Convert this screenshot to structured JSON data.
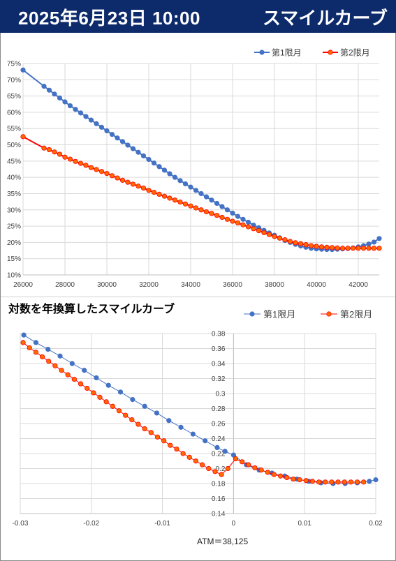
{
  "header": {
    "title": "2025年6月23日 10:00",
    "subtitle": "スマイルカーブ"
  },
  "colors": {
    "header_bg": "#0d2a6b",
    "series1": "#4472c4",
    "series2": "#ff0000",
    "series2_fill": "#ff6a00",
    "grid": "#d9d9d9"
  },
  "chart_data": [
    {
      "type": "line",
      "title": "",
      "xlabel": "",
      "ylabel": "",
      "xlim": [
        26000,
        43000
      ],
      "ylim": [
        10,
        75
      ],
      "x_ticks": [
        26000,
        28000,
        30000,
        32000,
        34000,
        36000,
        38000,
        40000,
        42000
      ],
      "y_ticks": [
        10,
        15,
        20,
        25,
        30,
        35,
        40,
        45,
        50,
        55,
        60,
        65,
        70,
        75
      ],
      "y_tick_suffix": "%",
      "grid": true,
      "legend": "top-right",
      "series": [
        {
          "name": "第1限月",
          "x": [
            26000,
            27000,
            27250,
            27500,
            27750,
            28000,
            28250,
            28500,
            28750,
            29000,
            29250,
            29500,
            29750,
            30000,
            30250,
            30500,
            30750,
            31000,
            31250,
            31500,
            31750,
            32000,
            32250,
            32500,
            32750,
            33000,
            33250,
            33500,
            33750,
            34000,
            34250,
            34500,
            34750,
            35000,
            35250,
            35500,
            35750,
            36000,
            36250,
            36500,
            36750,
            37000,
            37250,
            37500,
            37750,
            38000,
            38250,
            38500,
            38750,
            39000,
            39250,
            39500,
            39750,
            40000,
            40250,
            40500,
            40750,
            41000,
            41250,
            41500,
            41750,
            42000,
            42250,
            42500,
            42750,
            43000
          ],
          "y": [
            73,
            68,
            66.8,
            65.6,
            64.4,
            63.2,
            62,
            60.9,
            59.8,
            58.7,
            57.6,
            56.5,
            55.4,
            54.3,
            53.2,
            52.1,
            51,
            49.9,
            48.8,
            47.7,
            46.6,
            45.5,
            44.4,
            43.3,
            42.2,
            41.1,
            40,
            39,
            38,
            37,
            36,
            35,
            34,
            33,
            32,
            31,
            30,
            29,
            28,
            27.1,
            26.2,
            25.3,
            24.5,
            23.7,
            22.9,
            22.2,
            21.4,
            20.6,
            20,
            19.4,
            18.9,
            18.5,
            18.2,
            18,
            17.9,
            17.8,
            17.8,
            17.9,
            18,
            18.1,
            18.3,
            18.6,
            19,
            19.5,
            20.1,
            21.2
          ]
        },
        {
          "name": "第2限月",
          "x": [
            26000,
            27000,
            27250,
            27500,
            27750,
            28000,
            28250,
            28500,
            28750,
            29000,
            29250,
            29500,
            29750,
            30000,
            30250,
            30500,
            30750,
            31000,
            31250,
            31500,
            31750,
            32000,
            32250,
            32500,
            32750,
            33000,
            33250,
            33500,
            33750,
            34000,
            34250,
            34500,
            34750,
            35000,
            35250,
            35500,
            35750,
            36000,
            36250,
            36500,
            36750,
            37000,
            37250,
            37500,
            37750,
            38000,
            38250,
            38500,
            38750,
            39000,
            39250,
            39500,
            39750,
            40000,
            40250,
            40500,
            40750,
            41000,
            41250,
            41500,
            41750,
            42000,
            42250,
            42500,
            42750,
            43000
          ],
          "y": [
            52.5,
            49,
            48.5,
            47.8,
            47.1,
            46.2,
            45.6,
            44.9,
            44.3,
            43.7,
            43,
            42.4,
            41.8,
            41.2,
            40.5,
            39.8,
            39.1,
            38.5,
            37.9,
            37.3,
            36.7,
            36,
            35.4,
            34.8,
            34.2,
            33.6,
            33,
            32.4,
            31.8,
            31.2,
            30.6,
            30,
            29.4,
            28.9,
            28.3,
            27.7,
            27.1,
            26.5,
            26,
            25.4,
            24.8,
            24.2,
            23.6,
            23,
            22.4,
            21.8,
            21.3,
            20.8,
            20.3,
            19.9,
            19.6,
            19.3,
            19,
            18.8,
            18.6,
            18.5,
            18.4,
            18.3,
            18.2,
            18.2,
            18.2,
            18.2,
            18.2,
            18.2,
            18.2,
            18.2
          ]
        }
      ]
    },
    {
      "type": "line",
      "title": "対数を年換算したスマイルカーブ",
      "xlabel": "",
      "ylabel": "",
      "xlim": [
        -0.03,
        0.02
      ],
      "ylim": [
        0.14,
        0.38
      ],
      "x_ticks": [
        -0.03,
        -0.02,
        -0.01,
        0,
        0.01,
        0.02
      ],
      "x_tick_labels": [
        "-0.03",
        "-0.02",
        "-0.01",
        "0",
        "0.01",
        "0.02"
      ],
      "y_ticks": [
        0.14,
        0.16,
        0.18,
        0.2,
        0.22,
        0.24,
        0.26,
        0.28,
        0.3,
        0.32,
        0.34,
        0.36,
        0.38
      ],
      "y_tick_labels": [
        "0.14",
        "0.16",
        "0.18",
        "0.2",
        "0.22",
        "0.24",
        "0.26",
        "0.28",
        "0.3",
        "0.32",
        "0.34",
        "0.36",
        "0.38"
      ],
      "grid": true,
      "legend": "top-right",
      "annotation": "ATM＝38,125",
      "series": [
        {
          "name": "第1限月",
          "x": [
            -0.0295,
            -0.0278,
            -0.0261,
            -0.0244,
            -0.0227,
            -0.021,
            -0.0193,
            -0.0176,
            -0.0159,
            -0.0142,
            -0.0125,
            -0.0108,
            -0.0091,
            -0.0074,
            -0.0057,
            -0.004,
            -0.0023,
            -0.0012,
            0,
            0.0018,
            0.0036,
            0.0054,
            0.0072,
            0.0089,
            0.0106,
            0.0123,
            0.014,
            0.0157,
            0.0174,
            0.0191,
            0.02
          ],
          "y": [
            0.378,
            0.368,
            0.359,
            0.35,
            0.34,
            0.331,
            0.321,
            0.311,
            0.302,
            0.292,
            0.283,
            0.274,
            0.264,
            0.255,
            0.246,
            0.237,
            0.228,
            0.223,
            0.218,
            0.205,
            0.198,
            0.194,
            0.19,
            0.186,
            0.183,
            0.181,
            0.18,
            0.18,
            0.181,
            0.183,
            0.185
          ]
        },
        {
          "name": "第2限月",
          "x": [
            -0.0296,
            -0.0287,
            -0.0278,
            -0.0269,
            -0.026,
            -0.0251,
            -0.0242,
            -0.0233,
            -0.0224,
            -0.0215,
            -0.0206,
            -0.0197,
            -0.0188,
            -0.0179,
            -0.017,
            -0.0161,
            -0.0152,
            -0.0143,
            -0.0134,
            -0.0125,
            -0.0116,
            -0.0107,
            -0.0098,
            -0.0089,
            -0.008,
            -0.0071,
            -0.0062,
            -0.0053,
            -0.0044,
            -0.0035,
            -0.0026,
            -0.0017,
            -0.0008,
            0.0003,
            0.0012,
            0.0021,
            0.003,
            0.0039,
            0.0048,
            0.0057,
            0.0066,
            0.0075,
            0.0084,
            0.0093,
            0.0102,
            0.0111,
            0.012,
            0.0129,
            0.0138,
            0.0147,
            0.0156,
            0.0165,
            0.0174,
            0.0183
          ],
          "y": [
            0.368,
            0.361,
            0.355,
            0.349,
            0.343,
            0.337,
            0.331,
            0.325,
            0.319,
            0.313,
            0.307,
            0.301,
            0.295,
            0.289,
            0.283,
            0.277,
            0.271,
            0.265,
            0.259,
            0.253,
            0.248,
            0.242,
            0.237,
            0.231,
            0.226,
            0.22,
            0.215,
            0.21,
            0.205,
            0.2,
            0.196,
            0.192,
            0.2,
            0.213,
            0.209,
            0.205,
            0.201,
            0.198,
            0.195,
            0.192,
            0.19,
            0.188,
            0.186,
            0.185,
            0.184,
            0.183,
            0.182,
            0.182,
            0.182,
            0.182,
            0.182,
            0.182,
            0.182,
            0.182
          ]
        }
      ]
    }
  ]
}
